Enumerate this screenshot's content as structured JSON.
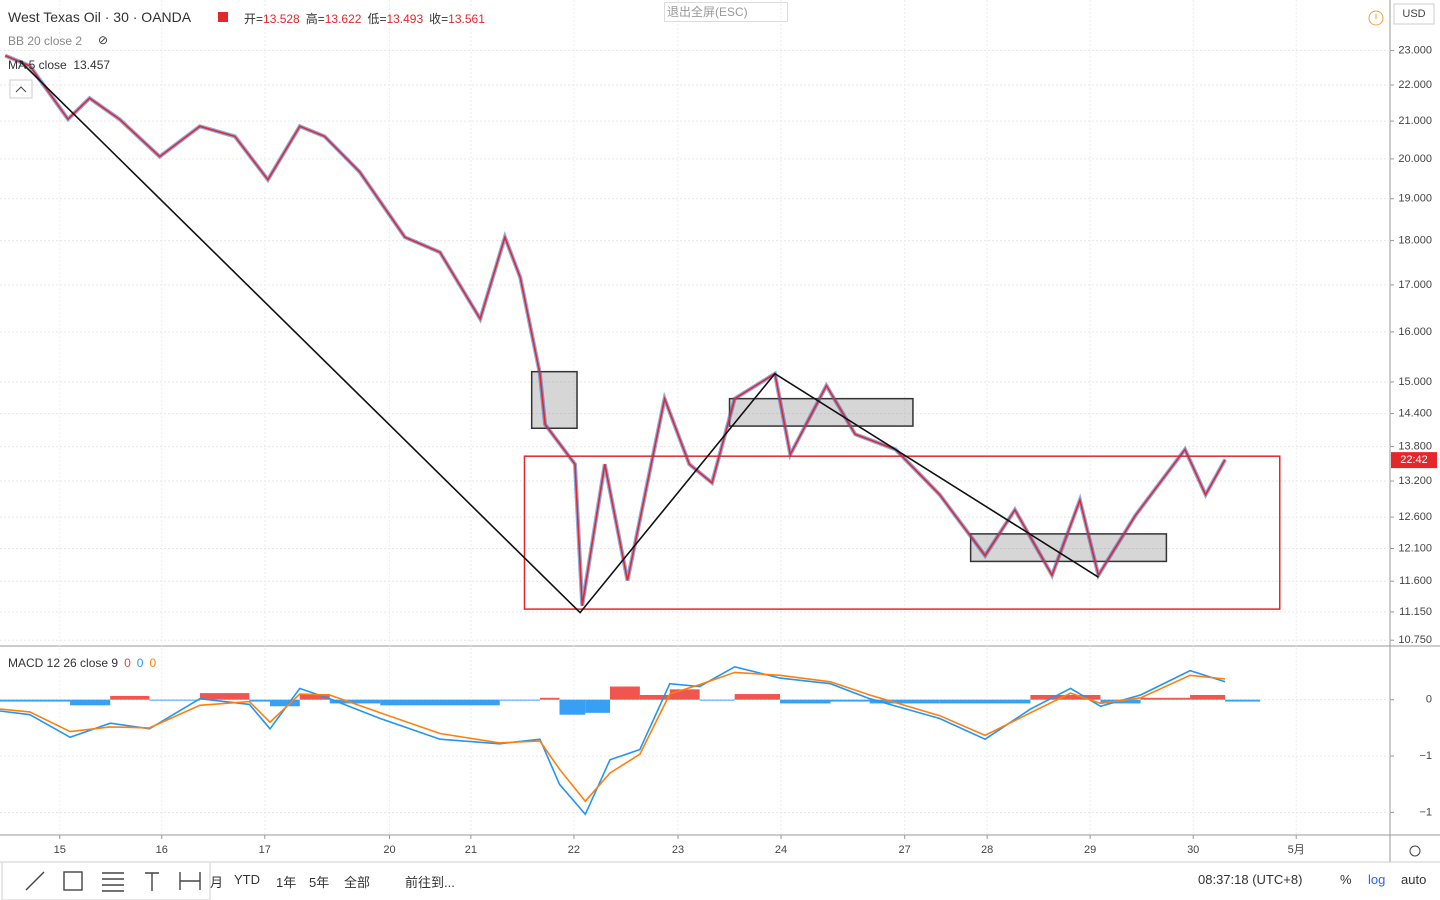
{
  "header": {
    "title": "West Texas Oil · 30 · OANDA",
    "ohlc": [
      {
        "label": "开=",
        "value": 13.528
      },
      {
        "label": "高=",
        "value": 13.622
      },
      {
        "label": "低=",
        "value": 13.493
      },
      {
        "label": "收=",
        "value": 13.561
      }
    ],
    "indicator_bb": "BB 20 close 2",
    "indicator_ma": "MA 5 close",
    "ma_value": 13.457,
    "fullscreen_exit": "退出全屏(ESC)",
    "currency": "USD",
    "countdown": "22:42",
    "macd_label": "MACD 12 26 close 9",
    "macd_values": [
      {
        "value": 0,
        "color": "#f0423c"
      },
      {
        "value": 0,
        "color": "#2196f3"
      },
      {
        "value": 0,
        "color": "#ff7f0e"
      }
    ]
  },
  "toolbar": {
    "ranges": [
      "月",
      "YTD",
      "1年",
      "5年",
      "全部"
    ],
    "goto": "前往到...",
    "clock": "08:37:18 (UTC+8)",
    "percent": "%",
    "log": "log",
    "auto": "auto"
  },
  "chart_data": [
    {
      "type": "line",
      "log": true,
      "grid": true,
      "xlim": [
        -0.58,
        12.91
      ],
      "ylim": [
        10.67,
        24.55
      ],
      "xticks": [
        {
          "value": 0,
          "label": "15"
        },
        {
          "value": 0.99,
          "label": "16"
        },
        {
          "value": 1.99,
          "label": "17"
        },
        {
          "value": 3.2,
          "label": "20"
        },
        {
          "value": 3.99,
          "label": "21"
        },
        {
          "value": 4.99,
          "label": "22"
        },
        {
          "value": 6,
          "label": "23"
        },
        {
          "value": 7,
          "label": "24"
        },
        {
          "value": 8.2,
          "label": "27"
        },
        {
          "value": 9,
          "label": "28"
        },
        {
          "value": 10,
          "label": "29"
        },
        {
          "value": 11,
          "label": "30"
        },
        {
          "value": 12,
          "label": "5月"
        }
      ],
      "yticks": [
        {
          "value": 23,
          "label": "23.000"
        },
        {
          "value": 22,
          "label": "22.000"
        },
        {
          "value": 21,
          "label": "21.000"
        },
        {
          "value": 20,
          "label": "20.000"
        },
        {
          "value": 19,
          "label": "19.000"
        },
        {
          "value": 18,
          "label": "18.000"
        },
        {
          "value": 17,
          "label": "17.000"
        },
        {
          "value": 16,
          "label": "16.000"
        },
        {
          "value": 15,
          "label": "15.000"
        },
        {
          "value": 14.4,
          "label": "14.400"
        },
        {
          "value": 13.8,
          "label": "13.800"
        },
        {
          "value": 13.2,
          "label": "13.200"
        },
        {
          "value": 12.6,
          "label": "12.600"
        },
        {
          "value": 12.1,
          "label": "12.100"
        },
        {
          "value": 11.6,
          "label": "11.600"
        },
        {
          "value": 11.15,
          "label": "11.150"
        },
        {
          "value": 10.75,
          "label": "10.750"
        }
      ],
      "series": [
        {
          "color": "#e5262b",
          "underlay_color": "#2e64c8",
          "x": [
            -0.53,
            -0.29,
            0.08,
            0.29,
            0.58,
            0.97,
            1.36,
            1.7,
            2.02,
            2.33,
            2.57,
            2.91,
            3.35,
            3.69,
            4.08,
            4.32,
            4.47,
            4.66,
            4.71,
            5.0,
            5.07,
            5.29,
            5.51,
            5.68,
            5.87,
            6.11,
            6.33,
            6.55,
            6.94,
            7.09,
            7.44,
            7.72,
            8.11,
            8.54,
            8.98,
            9.27,
            9.63,
            9.9,
            10.08,
            10.44,
            10.92,
            11.12,
            11.31
          ],
          "values": [
            22.85,
            22.55,
            21.05,
            21.63,
            21.05,
            20.06,
            20.86,
            20.59,
            19.47,
            20.86,
            20.59,
            19.67,
            18.08,
            17.73,
            16.27,
            18.08,
            17.16,
            15.16,
            14.2,
            13.49,
            11.24,
            13.49,
            11.61,
            12.97,
            14.68,
            13.49,
            13.17,
            14.68,
            15.16,
            13.66,
            14.93,
            14.02,
            13.75,
            12.97,
            11.99,
            12.72,
            11.69,
            12.88,
            11.69,
            12.63,
            13.75,
            12.97,
            13.57
          ]
        },
        {
          "color": "#111111",
          "x": [
            -0.39,
            5.05,
            6.94,
            10.08
          ],
          "values": [
            22.7,
            11.14,
            15.16,
            11.66
          ]
        }
      ],
      "shapes": [
        {
          "x": [
            4.51,
            11.84
          ],
          "y": [
            11.19,
            13.63
          ],
          "stroke": "#e5262b",
          "fill": "none"
        },
        {
          "x": [
            4.58,
            5.02
          ],
          "y": [
            14.13,
            15.2
          ],
          "stroke": "#333333",
          "fill": "rgba(120,120,120,0.3)"
        },
        {
          "x": [
            6.5,
            8.28
          ],
          "y": [
            14.17,
            14.68
          ],
          "stroke": "#333333",
          "fill": "rgba(120,120,120,0.3)"
        },
        {
          "x": [
            8.84,
            10.74
          ],
          "y": [
            11.9,
            12.33
          ],
          "stroke": "#333333",
          "fill": "rgba(120,120,120,0.3)"
        }
      ]
    },
    {
      "type": "line",
      "log": false,
      "grid": true,
      "xlim": [
        -0.58,
        12.91
      ],
      "ylim": [
        -1.44,
        0.55
      ],
      "yticks": [
        0,
        {
          "value": -0.6,
          "label": "−1"
        },
        {
          "value": -1.2,
          "label": "−1"
        }
      ],
      "histogram": {
        "up_color": "#f0423c",
        "down_color": "#2196f3",
        "x": [
          -0.58,
          -0.29,
          0.1,
          0.49,
          0.87,
          1.36,
          1.84,
          2.04,
          2.33,
          2.62,
          3.11,
          3.69,
          4.27,
          4.66,
          4.85,
          5.1,
          5.34,
          5.63,
          5.92,
          6.21,
          6.55,
          6.99,
          7.48,
          7.86,
          8.54,
          8.98,
          9.42,
          9.81,
          10.1,
          10.49,
          10.97,
          11.31
        ],
        "values": [
          -0.02,
          -0.02,
          -0.06,
          0.04,
          -0.01,
          0.07,
          -0.02,
          -0.07,
          0.06,
          -0.04,
          -0.06,
          -0.06,
          -0.01,
          0.02,
          -0.16,
          -0.14,
          0.14,
          0.05,
          0.11,
          -0.01,
          0.06,
          -0.04,
          -0.02,
          -0.04,
          -0.04,
          -0.04,
          0.05,
          0.05,
          -0.04,
          0.02,
          0.05,
          -0.02
        ]
      },
      "series": [
        {
          "color": "#2196f3",
          "x": [
            -0.58,
            -0.29,
            0.1,
            0.49,
            0.87,
            1.36,
            1.84,
            2.04,
            2.33,
            2.62,
            3.11,
            3.69,
            4.27,
            4.66,
            4.85,
            5.1,
            5.34,
            5.63,
            5.92,
            6.21,
            6.55,
            6.99,
            7.48,
            7.86,
            8.54,
            8.98,
            9.42,
            9.81,
            10.1,
            10.49,
            10.97,
            11.31
          ],
          "values": [
            -0.12,
            -0.16,
            -0.4,
            -0.25,
            -0.31,
            0.01,
            -0.05,
            -0.31,
            0.12,
            0.01,
            -0.2,
            -0.42,
            -0.47,
            -0.42,
            -0.9,
            -1.22,
            -0.64,
            -0.53,
            0.17,
            0.14,
            0.35,
            0.23,
            0.17,
            0.01,
            -0.2,
            -0.42,
            -0.1,
            0.12,
            -0.07,
            0.05,
            0.31,
            0.19
          ]
        },
        {
          "color": "#ff7f0e",
          "x": [
            -0.58,
            -0.29,
            0.1,
            0.49,
            0.87,
            1.36,
            1.84,
            2.04,
            2.33,
            2.62,
            3.11,
            3.69,
            4.27,
            4.66,
            4.85,
            5.1,
            5.34,
            5.63,
            5.92,
            6.21,
            6.55,
            6.99,
            7.48,
            7.86,
            8.54,
            8.98,
            9.42,
            9.81,
            10.1,
            10.49,
            10.97,
            11.31
          ],
          "values": [
            -0.1,
            -0.13,
            -0.34,
            -0.29,
            -0.3,
            -0.06,
            -0.02,
            -0.24,
            0.06,
            0.05,
            -0.14,
            -0.36,
            -0.46,
            -0.44,
            -0.74,
            -1.08,
            -0.78,
            -0.58,
            0.06,
            0.16,
            0.29,
            0.26,
            0.19,
            0.05,
            -0.17,
            -0.38,
            -0.14,
            0.07,
            -0.04,
            0.02,
            0.26,
            0.22
          ]
        }
      ]
    }
  ]
}
